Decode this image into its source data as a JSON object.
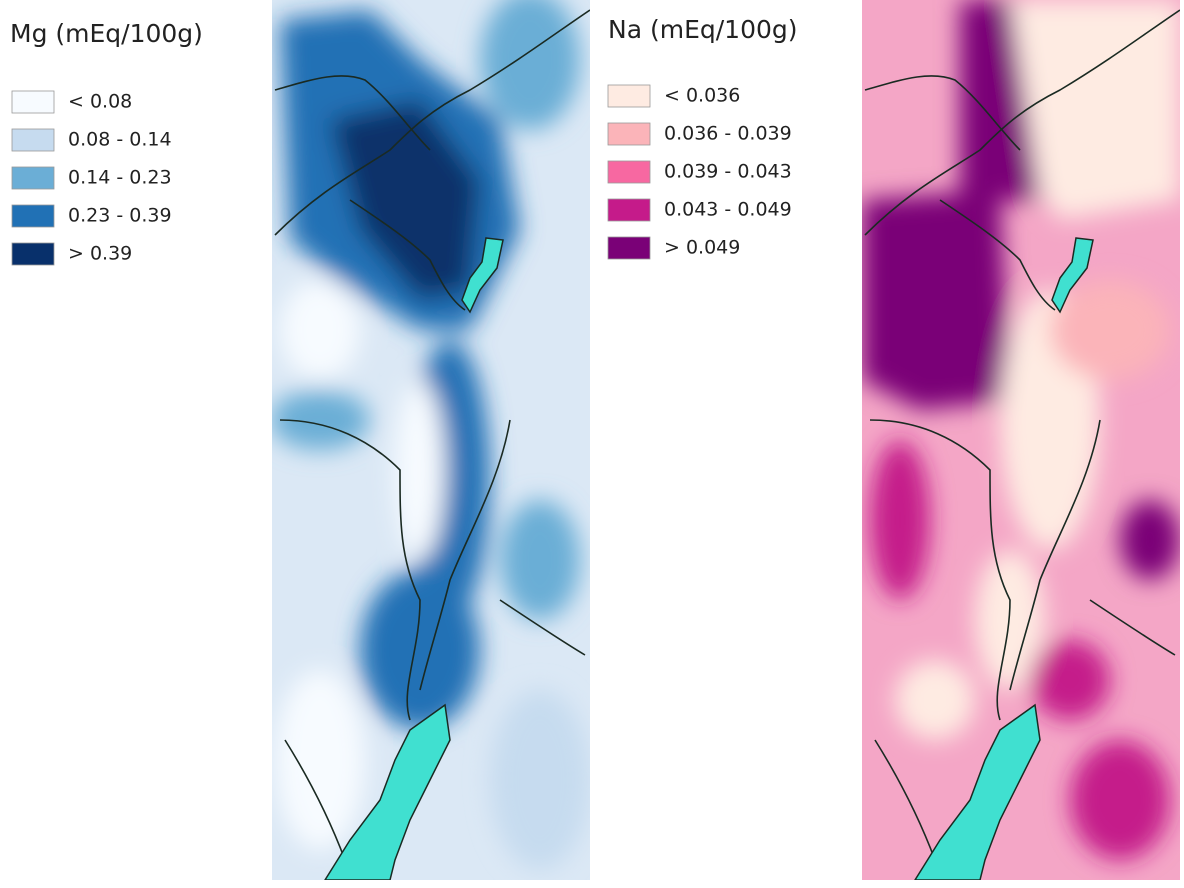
{
  "maps": [
    {
      "title": "Mg (mEq/100g)",
      "legend": [
        {
          "label": "< 0.08",
          "color": "#f7fbff"
        },
        {
          "label": "0.08 - 0.14",
          "color": "#c6dbef"
        },
        {
          "label": "0.14 - 0.23",
          "color": "#6baed6"
        },
        {
          "label": "0.23 - 0.39",
          "color": "#2171b5"
        },
        {
          "label": "> 0.39",
          "color": "#08306b"
        }
      ]
    },
    {
      "title": "Na (mEq/100g)",
      "legend": [
        {
          "label": "< 0.036",
          "color": "#feebe2"
        },
        {
          "label": "0.036 - 0.039",
          "color": "#fbb4b9"
        },
        {
          "label": "0.039 - 0.043",
          "color": "#f768a1"
        },
        {
          "label": "0.043 - 0.049",
          "color": "#c51b8a"
        },
        {
          "label": "> 0.049",
          "color": "#7a0177"
        }
      ]
    }
  ]
}
